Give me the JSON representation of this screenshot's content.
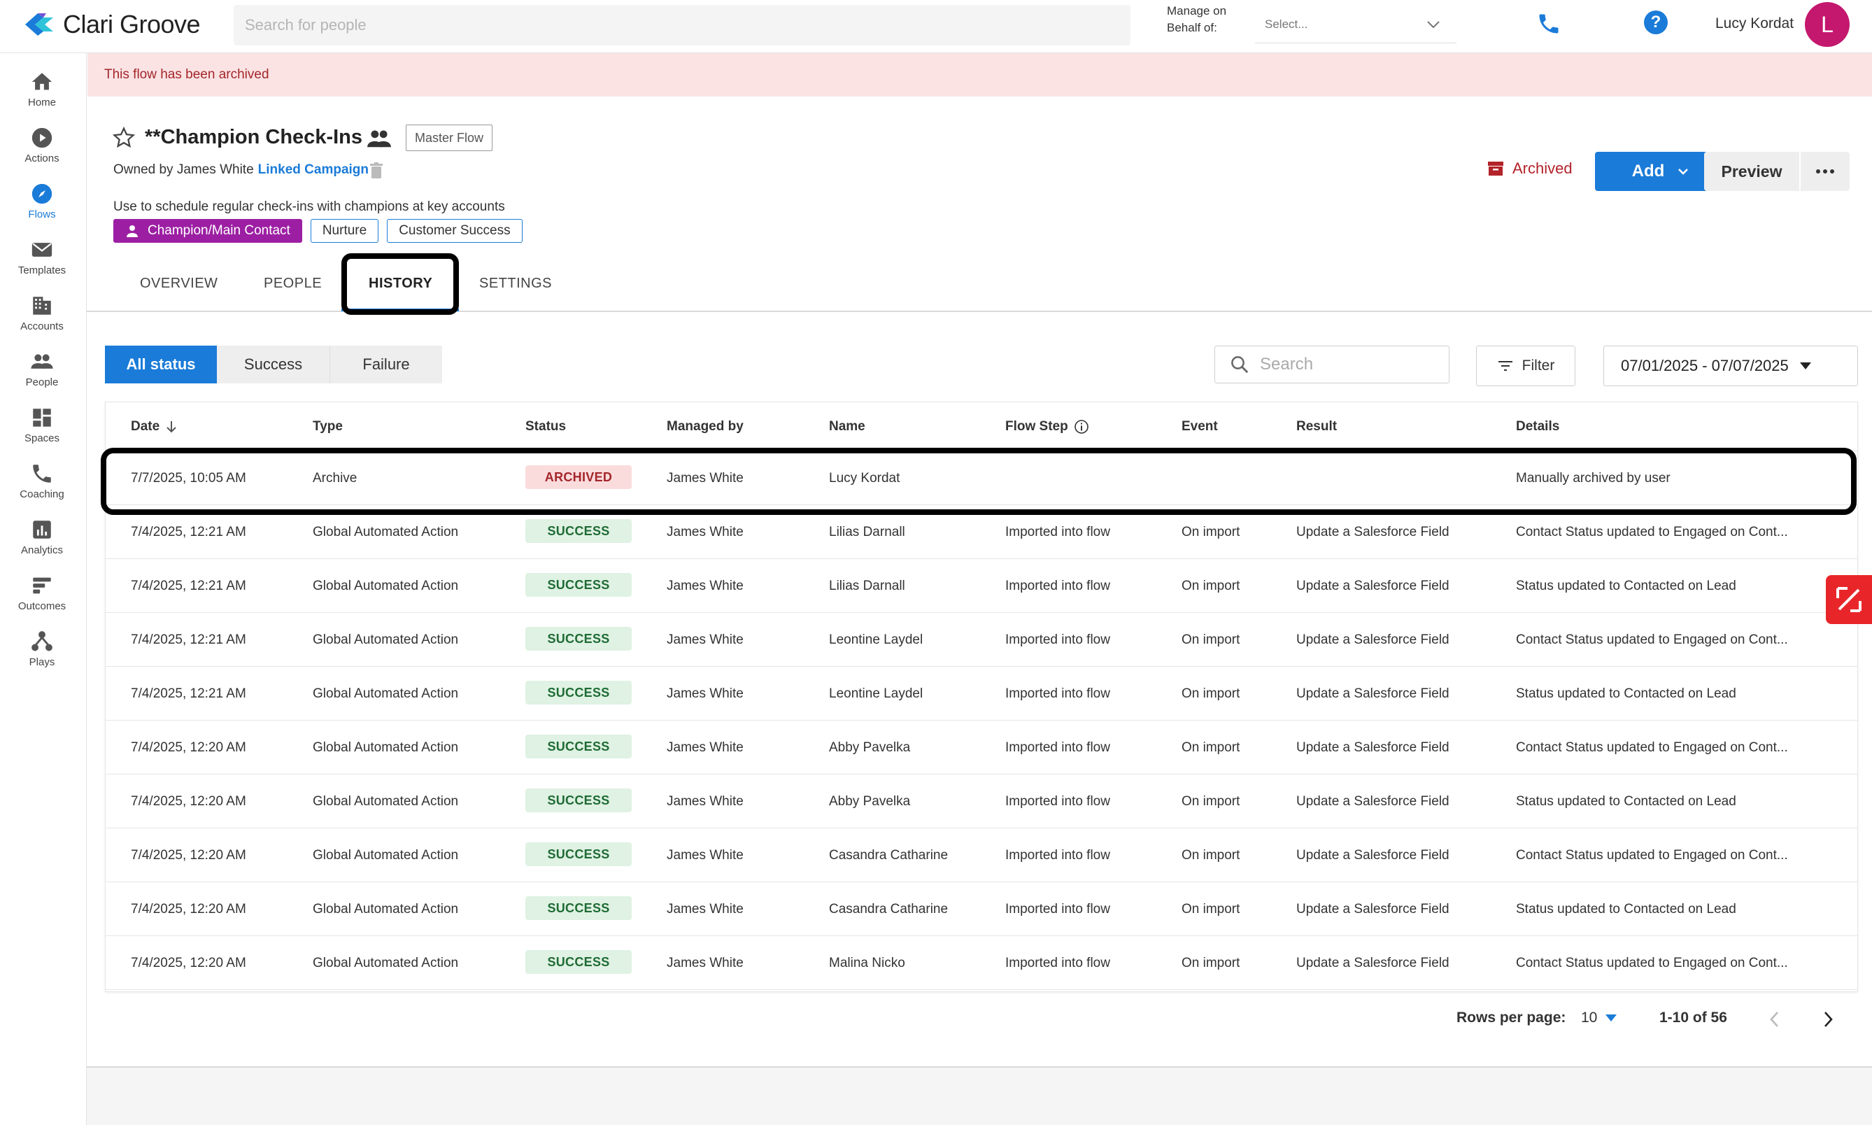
{
  "header": {
    "brand": "Clari Groove",
    "search_placeholder": "Search for people",
    "manage_label_1": "Manage on",
    "manage_label_2": "Behalf of:",
    "behalf_placeholder": "Select...",
    "user_name": "Lucy Kordat",
    "avatar_initial": "L"
  },
  "sidebar": {
    "items": [
      {
        "label": "Home",
        "icon": "home-icon"
      },
      {
        "label": "Actions",
        "icon": "play-icon"
      },
      {
        "label": "Flows",
        "icon": "compass-icon"
      },
      {
        "label": "Templates",
        "icon": "mail-icon"
      },
      {
        "label": "Accounts",
        "icon": "building-icon"
      },
      {
        "label": "People",
        "icon": "people-icon"
      },
      {
        "label": "Spaces",
        "icon": "spaces-icon"
      },
      {
        "label": "Coaching",
        "icon": "phone-icon"
      },
      {
        "label": "Analytics",
        "icon": "chart-icon"
      },
      {
        "label": "Outcomes",
        "icon": "outcomes-icon"
      },
      {
        "label": "Plays",
        "icon": "plays-icon"
      }
    ],
    "active": "Flows"
  },
  "banner": {
    "text": "This flow has been archived"
  },
  "flow": {
    "title": "**Champion Check-Ins",
    "badge": "Master Flow",
    "owner_text": "Owned by James White",
    "linked_campaign": "Linked Campaign",
    "description": "Use to schedule regular check-ins with champions at key accounts",
    "tags": [
      "Champion/Main Contact",
      "Nurture",
      "Customer Success"
    ],
    "status": "Archived"
  },
  "actions": {
    "add": "Add",
    "preview": "Preview"
  },
  "tabs": {
    "overview": "OVERVIEW",
    "people": "PEOPLE",
    "history": "HISTORY",
    "settings": "SETTINGS",
    "active": "HISTORY"
  },
  "filters": {
    "status_options": [
      "All status",
      "Success",
      "Failure"
    ],
    "search_placeholder": "Search",
    "filter_label": "Filter",
    "date_range": "07/01/2025 - 07/07/2025"
  },
  "table": {
    "columns": [
      "Date",
      "Type",
      "Status",
      "Managed by",
      "Name",
      "Flow Step",
      "Event",
      "Result",
      "Details"
    ],
    "rows": [
      {
        "date": "7/7/2025, 10:05 AM",
        "type": "Archive",
        "status": "ARCHIVED",
        "managed_by": "James White",
        "name": "Lucy Kordat",
        "flow_step": "",
        "event": "",
        "result": "",
        "details": "Manually archived by user"
      },
      {
        "date": "7/4/2025, 12:21 AM",
        "type": "Global Automated Action",
        "status": "SUCCESS",
        "managed_by": "James White",
        "name": "Lilias Darnall",
        "flow_step": "Imported into flow",
        "event": "On import",
        "result": "Update a Salesforce Field",
        "details": "Contact Status updated to Engaged on Cont..."
      },
      {
        "date": "7/4/2025, 12:21 AM",
        "type": "Global Automated Action",
        "status": "SUCCESS",
        "managed_by": "James White",
        "name": "Lilias Darnall",
        "flow_step": "Imported into flow",
        "event": "On import",
        "result": "Update a Salesforce Field",
        "details": "Status updated to Contacted on Lead"
      },
      {
        "date": "7/4/2025, 12:21 AM",
        "type": "Global Automated Action",
        "status": "SUCCESS",
        "managed_by": "James White",
        "name": "Leontine Laydel",
        "flow_step": "Imported into flow",
        "event": "On import",
        "result": "Update a Salesforce Field",
        "details": "Contact Status updated to Engaged on Cont..."
      },
      {
        "date": "7/4/2025, 12:21 AM",
        "type": "Global Automated Action",
        "status": "SUCCESS",
        "managed_by": "James White",
        "name": "Leontine Laydel",
        "flow_step": "Imported into flow",
        "event": "On import",
        "result": "Update a Salesforce Field",
        "details": "Status updated to Contacted on Lead"
      },
      {
        "date": "7/4/2025, 12:20 AM",
        "type": "Global Automated Action",
        "status": "SUCCESS",
        "managed_by": "James White",
        "name": "Abby Pavelka",
        "flow_step": "Imported into flow",
        "event": "On import",
        "result": "Update a Salesforce Field",
        "details": "Contact Status updated to Engaged on Cont..."
      },
      {
        "date": "7/4/2025, 12:20 AM",
        "type": "Global Automated Action",
        "status": "SUCCESS",
        "managed_by": "James White",
        "name": "Abby Pavelka",
        "flow_step": "Imported into flow",
        "event": "On import",
        "result": "Update a Salesforce Field",
        "details": "Status updated to Contacted on Lead"
      },
      {
        "date": "7/4/2025, 12:20 AM",
        "type": "Global Automated Action",
        "status": "SUCCESS",
        "managed_by": "James White",
        "name": "Casandra Catharine",
        "flow_step": "Imported into flow",
        "event": "On import",
        "result": "Update a Salesforce Field",
        "details": "Contact Status updated to Engaged on Cont..."
      },
      {
        "date": "7/4/2025, 12:20 AM",
        "type": "Global Automated Action",
        "status": "SUCCESS",
        "managed_by": "James White",
        "name": "Casandra Catharine",
        "flow_step": "Imported into flow",
        "event": "On import",
        "result": "Update a Salesforce Field",
        "details": "Status updated to Contacted on Lead"
      },
      {
        "date": "7/4/2025, 12:20 AM",
        "type": "Global Automated Action",
        "status": "SUCCESS",
        "managed_by": "James White",
        "name": "Malina Nicko",
        "flow_step": "Imported into flow",
        "event": "On import",
        "result": "Update a Salesforce Field",
        "details": "Contact Status updated to Engaged on Cont..."
      }
    ]
  },
  "pagination": {
    "rows_label": "Rows per page:",
    "rows_value": "10",
    "range": "1-10 of 56"
  },
  "colors": {
    "accent": "#1a7bd8",
    "archived": "#a3262a",
    "success": "#1f6b35",
    "tag_purple": "#9c1fa3",
    "avatar": "#c4176e"
  }
}
